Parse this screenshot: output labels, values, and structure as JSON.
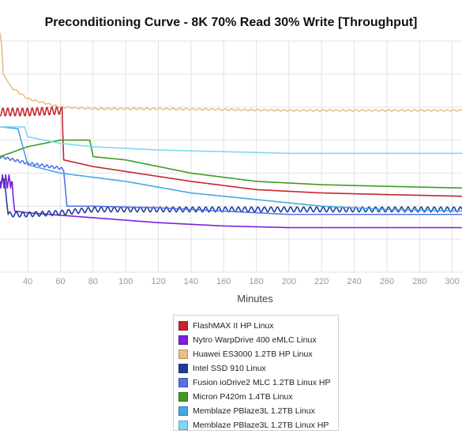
{
  "chart_data": {
    "type": "line",
    "title": "Preconditioning Curve - 8K 70% Read 30% Write [Throughput]",
    "xlabel": "Minutes",
    "ylabel": "",
    "xlim": [
      23,
      306
    ],
    "ylim": [
      0,
      140
    ],
    "x_ticks": [
      "40",
      "60",
      "80",
      "100",
      "120",
      "140",
      "160",
      "180",
      "200",
      "220",
      "240",
      "260",
      "280",
      "300"
    ],
    "grid": true,
    "legend_position": "bottom",
    "series": [
      {
        "name": "FlashMAX II HP Linux",
        "color": "#c6262e",
        "points": [
          [
            23,
            97
          ],
          [
            40,
            97
          ],
          [
            61,
            98
          ],
          [
            62,
            68
          ],
          [
            80,
            64
          ],
          [
            100,
            61
          ],
          [
            140,
            55
          ],
          [
            180,
            50
          ],
          [
            220,
            48
          ],
          [
            260,
            47
          ],
          [
            306,
            46
          ]
        ],
        "osc": {
          "from": 23,
          "to": 61,
          "amp": 2.5,
          "period": 3
        }
      },
      {
        "name": "Nytro WarpDrive 400 eMLC Linux",
        "color": "#7a1ee0",
        "points": [
          [
            23,
            55
          ],
          [
            30,
            55
          ],
          [
            32,
            37
          ],
          [
            40,
            36
          ],
          [
            80,
            33
          ],
          [
            120,
            30
          ],
          [
            160,
            28
          ],
          [
            200,
            27
          ],
          [
            240,
            27
          ],
          [
            306,
            27
          ]
        ],
        "osc": {
          "from": 23,
          "to": 31,
          "amp": 4,
          "period": 2
        }
      },
      {
        "name": "Huawei ES3000 1.2TB HP Linux",
        "color": "#e9bf85",
        "points": [
          [
            23,
            145
          ],
          [
            24,
            138
          ],
          [
            25,
            120
          ],
          [
            30,
            112
          ],
          [
            40,
            105
          ],
          [
            60,
            100
          ],
          [
            80,
            99
          ],
          [
            120,
            99
          ],
          [
            200,
            98
          ],
          [
            260,
            98
          ],
          [
            306,
            98
          ]
        ],
        "osc": {
          "from": 30,
          "to": 306,
          "amp": 0.5,
          "period": 4
        }
      },
      {
        "name": "Intel SSD 910 Linux",
        "color": "#223c9c",
        "points": [
          [
            23,
            55
          ],
          [
            26,
            55
          ],
          [
            28,
            35
          ],
          [
            40,
            35
          ],
          [
            60,
            36
          ],
          [
            80,
            38
          ],
          [
            306,
            38
          ]
        ],
        "osc": {
          "from": 23,
          "to": 306,
          "amp": 1.5,
          "period": 4
        }
      },
      {
        "name": "Fusion ioDrive2 MLC 1.2TB Linux HP",
        "color": "#5572e4",
        "points": [
          [
            23,
            70
          ],
          [
            40,
            66
          ],
          [
            60,
            63
          ],
          [
            62,
            62
          ],
          [
            64,
            40
          ],
          [
            80,
            40
          ],
          [
            120,
            39
          ],
          [
            160,
            37
          ],
          [
            200,
            35
          ],
          [
            260,
            35
          ],
          [
            306,
            35
          ]
        ],
        "osc": {
          "from": 23,
          "to": 62,
          "amp": 0.8,
          "period": 3
        }
      },
      {
        "name": "Micron P420m 1.4TB Linux",
        "color": "#3f9c20",
        "points": [
          [
            23,
            70
          ],
          [
            40,
            76
          ],
          [
            60,
            80
          ],
          [
            78,
            80
          ],
          [
            80,
            70
          ],
          [
            100,
            68
          ],
          [
            140,
            60
          ],
          [
            180,
            55
          ],
          [
            220,
            53
          ],
          [
            260,
            52
          ],
          [
            306,
            51
          ]
        ],
        "osc": {
          "from": 23,
          "to": 23,
          "amp": 0,
          "period": 3
        }
      },
      {
        "name": "Memblaze PBlaze3L 1.2TB Linux",
        "color": "#46a8e0",
        "points": [
          [
            23,
            88
          ],
          [
            33,
            87
          ],
          [
            34,
            87
          ],
          [
            40,
            65
          ],
          [
            60,
            60
          ],
          [
            100,
            55
          ],
          [
            140,
            48
          ],
          [
            180,
            44
          ],
          [
            220,
            40
          ],
          [
            260,
            38
          ],
          [
            306,
            37
          ]
        ],
        "osc": {
          "from": 23,
          "to": 23,
          "amp": 0,
          "period": 3
        }
      },
      {
        "name": "Memblaze PBlaze3L 1.2TB Linux HP",
        "color": "#7fd6f5",
        "points": [
          [
            23,
            88
          ],
          [
            35,
            88
          ],
          [
            38,
            88
          ],
          [
            40,
            82
          ],
          [
            60,
            78
          ],
          [
            80,
            76
          ],
          [
            100,
            75
          ],
          [
            120,
            74
          ],
          [
            160,
            73
          ],
          [
            200,
            72
          ],
          [
            260,
            72
          ],
          [
            306,
            72
          ]
        ],
        "osc": {
          "from": 23,
          "to": 23,
          "amp": 0,
          "period": 3
        }
      }
    ]
  }
}
